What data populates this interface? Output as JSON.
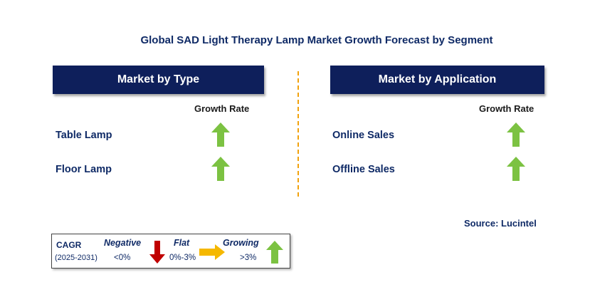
{
  "title": "Global SAD Light Therapy Lamp Market Growth Forecast by Segment",
  "colors": {
    "header_bg": "#0e1f5b",
    "text_navy": "#0f2a66",
    "growing": "#7cc242",
    "negative": "#c00000",
    "flat": "#f5b800",
    "divider": "#f2a20c"
  },
  "left_panel": {
    "header": "Market by Type",
    "column_header": "Growth Rate",
    "rows": [
      {
        "label": "Table Lamp",
        "trend": "growing",
        "icon": "up-arrow-icon"
      },
      {
        "label": "Floor Lamp",
        "trend": "growing",
        "icon": "up-arrow-icon"
      }
    ]
  },
  "right_panel": {
    "header": "Market by Application",
    "column_header": "Growth Rate",
    "rows": [
      {
        "label": "Online Sales",
        "trend": "growing",
        "icon": "up-arrow-icon"
      },
      {
        "label": "Offline Sales",
        "trend": "growing",
        "icon": "up-arrow-icon"
      }
    ]
  },
  "source": "Source: Lucintel",
  "legend": {
    "cagr_label": "CAGR",
    "period": "(2025-2031)",
    "negative": {
      "label": "Negative",
      "range": "<0%",
      "icon": "down-arrow-icon"
    },
    "flat": {
      "label": "Flat",
      "range": "0%-3%",
      "icon": "right-arrow-icon"
    },
    "growing": {
      "label": "Growing",
      "range": ">3%",
      "icon": "up-arrow-icon"
    }
  }
}
